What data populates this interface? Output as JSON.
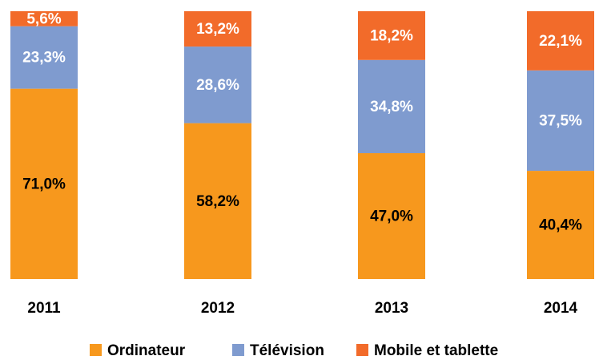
{
  "chart_data": {
    "type": "stacked_bar",
    "categories": [
      "2011",
      "2012",
      "2013",
      "2014"
    ],
    "series": [
      {
        "name": "Ordinateur",
        "color": "#f7981d",
        "values": [
          71.0,
          58.2,
          47.0,
          40.4
        ],
        "value_labels": [
          "71,0%",
          "58,2%",
          "47,0%",
          "40,4%"
        ]
      },
      {
        "name": "Télévision",
        "color": "#7f9bcf",
        "values": [
          23.3,
          28.6,
          34.8,
          37.5
        ],
        "value_labels": [
          "23,3%",
          "28,6%",
          "34,8%",
          "37,5%"
        ]
      },
      {
        "name": "Mobile et tablette",
        "color": "#f26b2a",
        "values": [
          5.6,
          13.2,
          18.2,
          22.1
        ],
        "value_labels": [
          "5,6%",
          "13,2%",
          "18,2%",
          "22,1%"
        ]
      }
    ],
    "legend": "bottom"
  }
}
